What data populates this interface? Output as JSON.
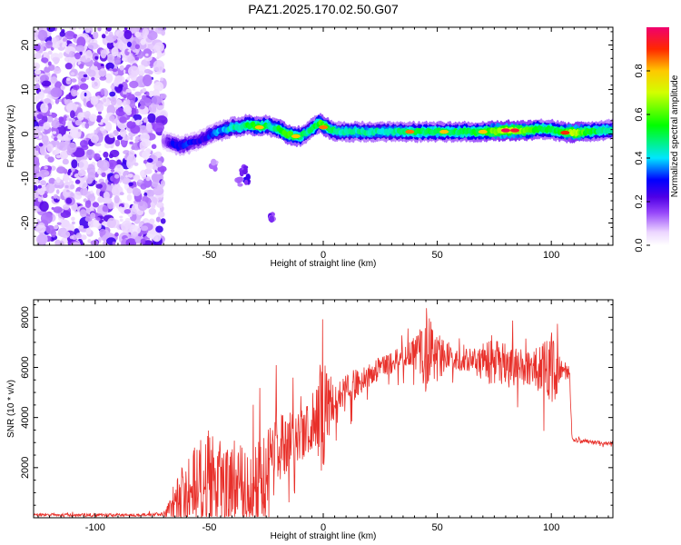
{
  "title": "PAZ1.2025.170.02.50.G07",
  "chart_data": [
    {
      "type": "heatmap",
      "xlabel": "Height of straight line (km)",
      "ylabel": "Frequency (Hz)",
      "xlim": [
        -127,
        127
      ],
      "ylim": [
        -25,
        24
      ],
      "xticks": [
        -100,
        -50,
        0,
        50,
        100
      ],
      "yticks": [
        -20,
        -10,
        0,
        10,
        20
      ],
      "noise_region": {
        "x": [
          -127,
          -70
        ],
        "y": [
          -25,
          24
        ]
      },
      "ridge": {
        "x": [
          -70,
          -67,
          -64,
          -61,
          -58,
          -55,
          -52,
          -49,
          -46,
          -43,
          -40,
          -37,
          -34,
          -31,
          -28,
          -25,
          -22,
          -19,
          -16,
          -13,
          -10,
          -7,
          -4,
          -2,
          0,
          3,
          6,
          10,
          20,
          30,
          40,
          50,
          60,
          70,
          80,
          90,
          95,
          100,
          105,
          110,
          115,
          120,
          127
        ],
        "y": [
          -1.5,
          -2,
          -2.5,
          -2.5,
          -2,
          -1.5,
          -1,
          0,
          0.5,
          1,
          1.5,
          1.5,
          2,
          2,
          1.5,
          2,
          1.5,
          1,
          0,
          -0.5,
          -0.5,
          0.5,
          1.5,
          2.5,
          2,
          1,
          0.5,
          0.5,
          0.5,
          0.5,
          0.5,
          0.5,
          0.5,
          0.5,
          0.8,
          0.8,
          1.2,
          1.0,
          0.5,
          0.3,
          0.5,
          0.8,
          1.0
        ],
        "amp": [
          0.15,
          0.25,
          0.3,
          0.3,
          0.28,
          0.25,
          0.28,
          0.3,
          0.35,
          0.4,
          0.45,
          0.45,
          0.5,
          0.55,
          0.55,
          0.5,
          0.45,
          0.55,
          0.6,
          0.55,
          0.5,
          0.45,
          0.5,
          0.55,
          0.6,
          0.5,
          0.45,
          0.45,
          0.45,
          0.45,
          0.5,
          0.5,
          0.5,
          0.55,
          0.7,
          0.6,
          0.5,
          0.5,
          0.55,
          0.7,
          0.55,
          0.5,
          0.45
        ]
      },
      "blobs": [
        {
          "x": -33,
          "y": -10,
          "amp": 0.25
        },
        {
          "x": -35,
          "y": -8,
          "amp": 0.2
        },
        {
          "x": -23,
          "y": -18.5,
          "amp": 0.2
        },
        {
          "x": -37,
          "y": -11,
          "amp": 0.15
        },
        {
          "x": -48,
          "y": -7,
          "amp": 0.12
        }
      ],
      "hot_spots": [
        {
          "x": 80,
          "y": 0.8,
          "amp": 0.98
        },
        {
          "x": 84,
          "y": 0.8,
          "amp": 0.95
        },
        {
          "x": 106,
          "y": 0.3,
          "amp": 0.9
        },
        {
          "x": 0,
          "y": 1.5,
          "amp": 0.85
        },
        {
          "x": 38,
          "y": 0.5,
          "amp": 0.85
        },
        {
          "x": 53,
          "y": 0.5,
          "amp": 0.8
        },
        {
          "x": 70,
          "y": 0.5,
          "amp": 0.8
        },
        {
          "x": -12,
          "y": -0.5,
          "amp": 0.8
        },
        {
          "x": -28,
          "y": 1.5,
          "amp": 0.8
        }
      ]
    },
    {
      "type": "colorbar",
      "label": "Normalized spectral amplitude",
      "ticks": [
        "0.0",
        "0.2",
        "0.4",
        "0.6",
        "0.8"
      ],
      "range": [
        0,
        1
      ]
    },
    {
      "type": "line",
      "xlabel": "Height of straight line (km)",
      "ylabel": "SNR (10 * v/v)",
      "xlim": [
        -127,
        127
      ],
      "ylim": [
        0,
        8700
      ],
      "xticks": [
        -100,
        -50,
        0,
        50,
        100
      ],
      "yticks": [
        2000,
        4000,
        6000,
        8000
      ],
      "color": "#e8302a",
      "envelope": {
        "x": [
          -127,
          -100,
          -80,
          -70,
          -65,
          -60,
          -55,
          -50,
          -45,
          -40,
          -35,
          -30,
          -25,
          -22,
          -20,
          -15,
          -10,
          -5,
          -2,
          0,
          2,
          5,
          10,
          15,
          20,
          25,
          30,
          35,
          40,
          45,
          50,
          55,
          60,
          65,
          70,
          75,
          80,
          85,
          90,
          95,
          100,
          105,
          108,
          109,
          110,
          115,
          120,
          127
        ],
        "base": [
          120,
          100,
          110,
          150,
          400,
          1100,
          1400,
          1300,
          1300,
          1400,
          1200,
          1100,
          1500,
          2600,
          2800,
          3000,
          3300,
          3700,
          4000,
          4300,
          4200,
          4500,
          5000,
          5400,
          5700,
          6000,
          6200,
          6400,
          6500,
          6600,
          6500,
          6400,
          6300,
          6300,
          6200,
          6200,
          6100,
          6000,
          6000,
          5900,
          5900,
          5800,
          5800,
          3200,
          3100,
          3050,
          3000,
          2950
        ],
        "noise": [
          60,
          60,
          60,
          80,
          800,
          2200,
          2000,
          2200,
          1800,
          1800,
          1800,
          1800,
          2000,
          1800,
          1500,
          1200,
          1100,
          1000,
          1600,
          2800,
          1500,
          900,
          700,
          600,
          500,
          450,
          450,
          500,
          700,
          1600,
          1000,
          500,
          450,
          450,
          800,
          900,
          900,
          800,
          700,
          1000,
          1600,
          300,
          250,
          100,
          80,
          80,
          80,
          80
        ]
      }
    }
  ]
}
